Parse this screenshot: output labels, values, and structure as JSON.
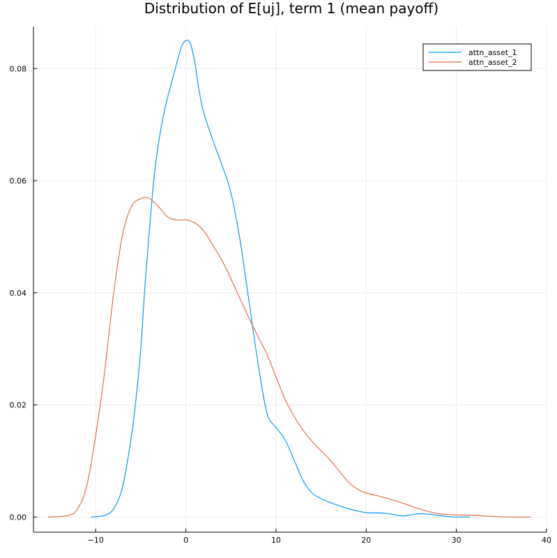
{
  "chart_data": {
    "type": "line",
    "title": "Distribution of E[uj], term 1 (mean payoff)",
    "xlabel": "",
    "ylabel": "",
    "xlim": [
      -16.9,
      40
    ],
    "ylim": [
      -0.0027,
      0.0875
    ],
    "xticks": [
      -10,
      0,
      10,
      20,
      30,
      40
    ],
    "xtick_labels": [
      "−10",
      "0",
      "10",
      "20",
      "30",
      "40"
    ],
    "yticks": [
      0.0,
      0.02,
      0.04,
      0.06,
      0.08
    ],
    "ytick_labels": [
      "0.00",
      "0.02",
      "0.04",
      "0.06",
      "0.08"
    ],
    "grid": true,
    "legend_position": "top-right",
    "series": [
      {
        "name": "attn_asset_1",
        "color": "#009AFA",
        "x": [
          -10.5,
          -9,
          -8,
          -7,
          -6,
          -5.5,
          -5,
          -4.5,
          -4,
          -3.5,
          -3,
          -2.5,
          -2,
          -1.5,
          -1,
          -0.5,
          0,
          0.5,
          1,
          1.5,
          2,
          3,
          4,
          5,
          6,
          7,
          8,
          9,
          10,
          11,
          12,
          13,
          14,
          15,
          16,
          18,
          20,
          22,
          24,
          25,
          26,
          27,
          28,
          29,
          30,
          31.5
        ],
        "y": [
          0.0,
          0.0003,
          0.0015,
          0.0055,
          0.0148,
          0.0215,
          0.03,
          0.042,
          0.052,
          0.061,
          0.067,
          0.0715,
          0.075,
          0.078,
          0.081,
          0.0838,
          0.085,
          0.0845,
          0.081,
          0.0758,
          0.072,
          0.0672,
          0.0628,
          0.0578,
          0.0495,
          0.0385,
          0.0275,
          0.0185,
          0.016,
          0.0138,
          0.0102,
          0.0065,
          0.0043,
          0.0033,
          0.0026,
          0.0015,
          0.0008,
          0.0007,
          0.0002,
          0.0004,
          0.0006,
          0.0005,
          0.0003,
          0.0001,
          0.0,
          0.0
        ]
      },
      {
        "name": "attn_asset_2",
        "color": "#E26F46",
        "x": [
          -15.3,
          -13,
          -12,
          -11,
          -10,
          -9,
          -8,
          -7,
          -6,
          -5,
          -4.5,
          -4,
          -3,
          -2,
          -1,
          0,
          1,
          2,
          3,
          4,
          5,
          6,
          7,
          8,
          9,
          10,
          11,
          12,
          13,
          14,
          15,
          16,
          17,
          18,
          19,
          20,
          22,
          24,
          26,
          28,
          30,
          32,
          34,
          36,
          38.3
        ],
        "y": [
          0.0,
          0.0003,
          0.0015,
          0.0055,
          0.0145,
          0.026,
          0.04,
          0.0505,
          0.0555,
          0.0568,
          0.057,
          0.0568,
          0.0553,
          0.0535,
          0.053,
          0.053,
          0.0525,
          0.051,
          0.0485,
          0.0458,
          0.0425,
          0.039,
          0.0355,
          0.0322,
          0.029,
          0.025,
          0.021,
          0.018,
          0.0155,
          0.0135,
          0.0118,
          0.0102,
          0.0082,
          0.0063,
          0.005,
          0.0043,
          0.0035,
          0.0025,
          0.0014,
          0.0006,
          0.0004,
          0.0003,
          0.0001,
          0.0,
          0.0
        ]
      }
    ]
  }
}
